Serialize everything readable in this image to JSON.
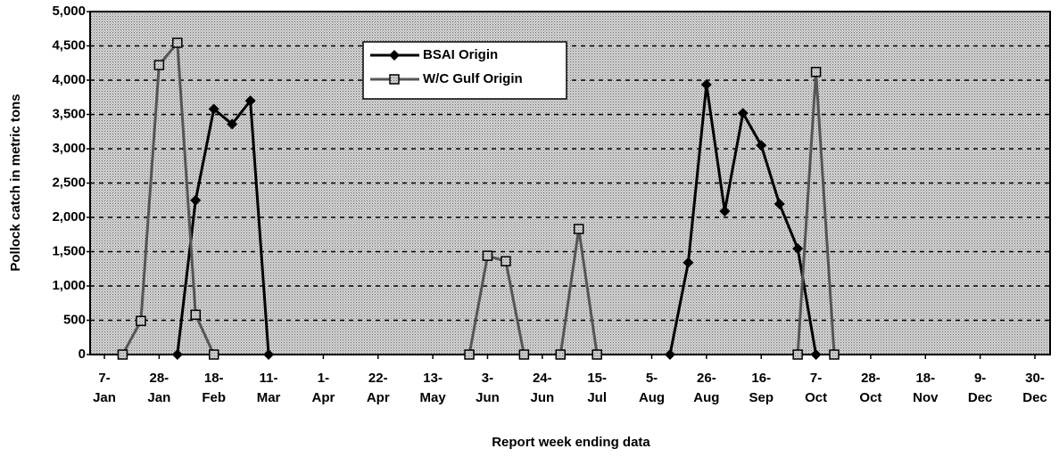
{
  "chart_data": {
    "type": "line",
    "y_label": "Pollock catch in metric tons",
    "x_label": "Report week ending data",
    "categories": [
      "7-\nJan",
      null,
      null,
      "28-\nJan",
      null,
      null,
      "18-\nFeb",
      null,
      null,
      "11-\nMar",
      null,
      null,
      "1-\nApr",
      null,
      null,
      "22-\nApr",
      null,
      null,
      "13-\nMay",
      null,
      null,
      "3-\nJun",
      null,
      null,
      "24-\nJun",
      null,
      null,
      "15-\nJul",
      null,
      null,
      "5-\nAug",
      null,
      null,
      "26-\nAug",
      null,
      null,
      "16-\nSep",
      null,
      null,
      "7-\nOct",
      null,
      null,
      "28-\nOct",
      null,
      null,
      "18-\nNov",
      null,
      null,
      "9-\nDec",
      null,
      null,
      "30-\nDec"
    ],
    "series": [
      {
        "name": "BSAI Origin",
        "color": "#000000",
        "marker": "diamond",
        "values": [
          null,
          null,
          null,
          null,
          0,
          2250,
          3580,
          3360,
          3700,
          0,
          null,
          null,
          null,
          null,
          null,
          null,
          null,
          null,
          null,
          null,
          null,
          null,
          null,
          null,
          null,
          null,
          null,
          null,
          null,
          null,
          null,
          0,
          1340,
          3935,
          2090,
          3520,
          3050,
          2195,
          1545,
          0,
          null,
          null,
          null,
          null,
          null,
          null,
          null,
          null,
          null,
          null,
          null,
          null
        ]
      },
      {
        "name": "W/C Gulf Origin",
        "color": "#555555",
        "marker": "square",
        "values": [
          null,
          0,
          490,
          4220,
          4545,
          580,
          0,
          null,
          null,
          null,
          null,
          null,
          null,
          null,
          null,
          null,
          null,
          null,
          null,
          null,
          0,
          1440,
          1360,
          0,
          null,
          0,
          1830,
          0,
          null,
          null,
          null,
          null,
          null,
          null,
          null,
          null,
          null,
          null,
          0,
          4120,
          0,
          null,
          null,
          null,
          null,
          null,
          null,
          null,
          null,
          null,
          null,
          null
        ]
      }
    ],
    "ylim": [
      0,
      5000
    ],
    "yticks": [
      0,
      500,
      {
        "value": 1000,
        "label": "1,000"
      },
      {
        "value": 1500,
        "label": "1,500"
      },
      {
        "value": 2000,
        "label": "2,000"
      },
      {
        "value": 2500,
        "label": "2,500"
      },
      {
        "value": 3000,
        "label": "3,000"
      },
      {
        "value": 3500,
        "label": "3,500"
      },
      {
        "value": 4000,
        "label": "4,000"
      },
      {
        "value": 4500,
        "label": "4,500"
      },
      {
        "value": 5000,
        "label": "5,000"
      }
    ],
    "grid": true,
    "legend": "top-center"
  }
}
